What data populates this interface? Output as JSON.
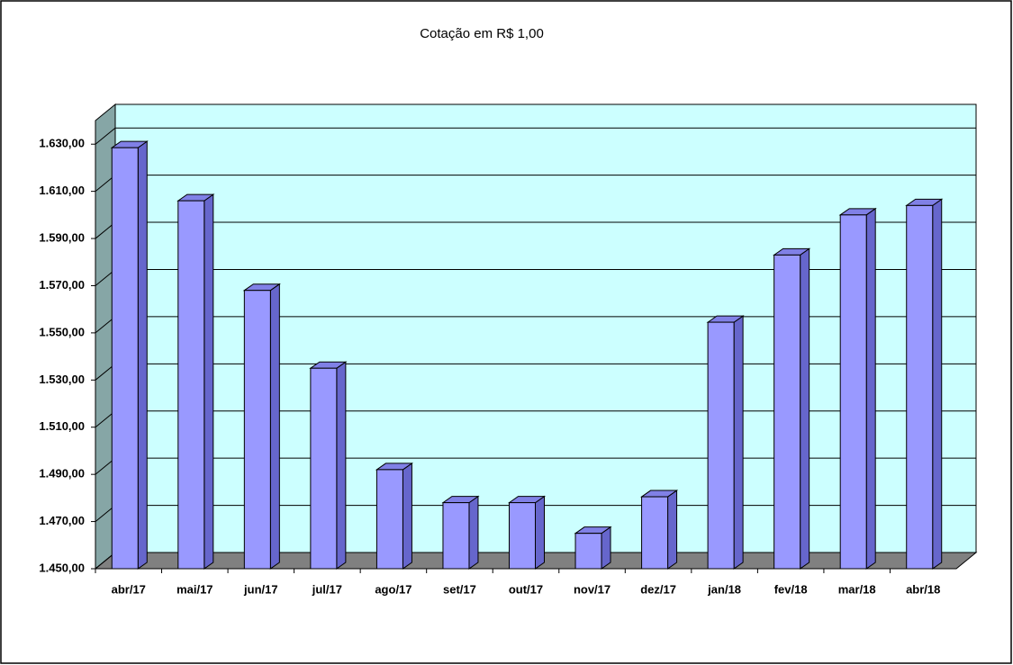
{
  "chart_data": {
    "type": "bar3d",
    "title": "Cotação em R$ 1,00",
    "categories": [
      "abr/17",
      "mai/17",
      "jun/17",
      "jul/17",
      "ago/17",
      "set/17",
      "out/17",
      "nov/17",
      "dez/17",
      "jan/18",
      "fev/18",
      "mar/18",
      "abr/18"
    ],
    "values": [
      1628.5,
      1606,
      1568,
      1535,
      1492,
      1478,
      1478,
      1465,
      1480.5,
      1554.5,
      1583,
      1600,
      1604
    ],
    "color": "#9999ff",
    "ylim": [
      1450,
      1640
    ],
    "yticks": [
      {
        "value": 1450,
        "label": "1.450,00"
      },
      {
        "value": 1470,
        "label": "1.470,00"
      },
      {
        "value": 1490,
        "label": "1.490,00"
      },
      {
        "value": 1510,
        "label": "1.510,00"
      },
      {
        "value": 1530,
        "label": "1.530,00"
      },
      {
        "value": 1550,
        "label": "1.550,00"
      },
      {
        "value": 1570,
        "label": "1.570,00"
      },
      {
        "value": 1590,
        "label": "1.590,00"
      },
      {
        "value": 1610,
        "label": "1.610,00"
      },
      {
        "value": 1630,
        "label": "1.630,00"
      }
    ],
    "grid": true
  }
}
